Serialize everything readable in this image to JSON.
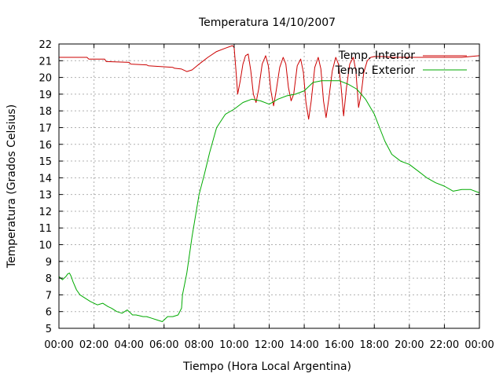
{
  "chart_data": {
    "type": "line",
    "title": "Temperatura 14/10/2007",
    "xlabel": "Tiempo (Hora Local Argentina)",
    "ylabel": "Temperatura (Grados Celsius)",
    "xlim": [
      0,
      24
    ],
    "ylim": [
      5,
      22
    ],
    "x_ticks": [
      "00:00",
      "02:00",
      "04:00",
      "06:00",
      "08:00",
      "10:00",
      "12:00",
      "14:00",
      "16:00",
      "18:00",
      "20:00",
      "22:00",
      "00:00"
    ],
    "y_ticks": [
      5,
      6,
      7,
      8,
      9,
      10,
      11,
      12,
      13,
      14,
      15,
      16,
      17,
      18,
      19,
      20,
      21,
      22
    ],
    "grid": true,
    "legend_position": "top-right",
    "series": [
      {
        "name": "Temp. Interior",
        "color": "#cc0000",
        "x": [
          0,
          1.6,
          1.7,
          2.6,
          2.7,
          4.0,
          4.1,
          5.0,
          5.1,
          6.5,
          6.6,
          7.0,
          7.3,
          7.6,
          8.0,
          8.5,
          9.0,
          9.5,
          9.9,
          10.0,
          10.1,
          10.2,
          10.35,
          10.5,
          10.65,
          10.8,
          10.95,
          11.1,
          11.25,
          11.4,
          11.6,
          11.8,
          11.95,
          12.1,
          12.25,
          12.4,
          12.6,
          12.8,
          12.95,
          13.1,
          13.25,
          13.4,
          13.6,
          13.8,
          13.95,
          14.1,
          14.25,
          14.4,
          14.6,
          14.8,
          14.95,
          15.1,
          15.25,
          15.4,
          15.6,
          15.8,
          15.95,
          16.1,
          16.25,
          16.4,
          16.6,
          16.8,
          16.95,
          17.1,
          17.25,
          17.4,
          17.6,
          17.8,
          18.0,
          18.5,
          19.0,
          19.5,
          20.0,
          20.5,
          21.0,
          22.0,
          23.0,
          24.0
        ],
        "y": [
          21.2,
          21.2,
          21.1,
          21.1,
          20.95,
          20.9,
          20.8,
          20.75,
          20.7,
          20.6,
          20.55,
          20.5,
          20.35,
          20.45,
          20.8,
          21.2,
          21.55,
          21.75,
          21.9,
          21.8,
          20.5,
          19.0,
          19.8,
          20.8,
          21.3,
          21.4,
          20.4,
          19.0,
          18.5,
          19.3,
          20.8,
          21.3,
          20.7,
          19.2,
          18.3,
          19.2,
          20.6,
          21.2,
          20.8,
          19.4,
          18.6,
          19.0,
          20.7,
          21.1,
          20.3,
          18.5,
          17.5,
          18.6,
          20.6,
          21.2,
          20.5,
          18.6,
          17.6,
          18.7,
          20.4,
          21.2,
          20.8,
          19.5,
          17.7,
          19.3,
          20.8,
          21.2,
          20.4,
          18.2,
          19.0,
          20.3,
          21.0,
          21.2,
          21.25,
          21.25,
          21.2,
          21.2,
          21.2,
          21.2,
          21.2,
          21.2,
          21.2,
          21.3
        ]
      },
      {
        "name": "Temp. Exterior",
        "color": "#00aa00",
        "x": [
          0,
          0.2,
          0.4,
          0.5,
          0.6,
          0.7,
          0.8,
          1.0,
          1.2,
          1.5,
          1.8,
          2.2,
          2.5,
          2.8,
          3.0,
          3.3,
          3.6,
          3.9,
          4.0,
          4.2,
          4.4,
          4.6,
          4.8,
          5.0,
          5.3,
          5.6,
          5.9,
          6.0,
          6.2,
          6.5,
          6.8,
          7.0,
          7.05,
          7.3,
          7.6,
          8.0,
          8.3,
          8.6,
          9.0,
          9.5,
          10.0,
          10.5,
          11.0,
          11.5,
          12.0,
          12.5,
          13.0,
          13.5,
          14.0,
          14.5,
          15.0,
          15.5,
          16.0,
          16.5,
          17.0,
          17.5,
          18.0,
          18.3,
          18.6,
          19.0,
          19.5,
          20.0,
          20.5,
          21.0,
          21.5,
          22.0,
          22.5,
          23.0,
          23.5,
          24.0
        ],
        "y": [
          8.1,
          7.9,
          8.1,
          8.25,
          8.3,
          8.1,
          7.8,
          7.3,
          7.0,
          6.8,
          6.6,
          6.4,
          6.5,
          6.3,
          6.2,
          6.0,
          5.9,
          6.1,
          6.0,
          5.8,
          5.8,
          5.75,
          5.7,
          5.7,
          5.6,
          5.5,
          5.4,
          5.5,
          5.7,
          5.7,
          5.8,
          6.2,
          7.0,
          8.3,
          10.5,
          13.0,
          14.2,
          15.5,
          17.0,
          17.8,
          18.1,
          18.5,
          18.7,
          18.6,
          18.4,
          18.7,
          18.9,
          19.0,
          19.2,
          19.7,
          19.8,
          19.8,
          19.8,
          19.6,
          19.3,
          18.7,
          17.8,
          17.0,
          16.2,
          15.4,
          15.0,
          14.8,
          14.4,
          14.0,
          13.7,
          13.5,
          13.2,
          13.3,
          13.3,
          13.1
        ]
      }
    ]
  }
}
